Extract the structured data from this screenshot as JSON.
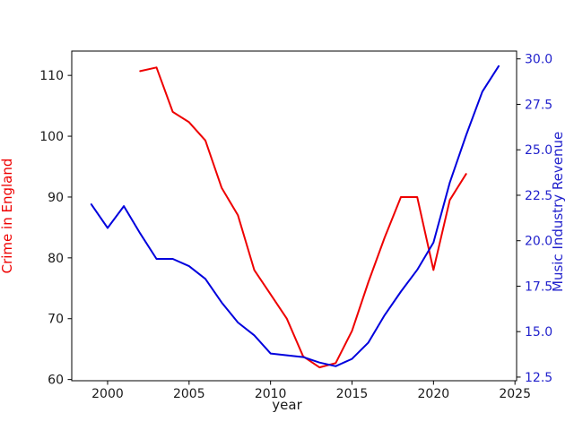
{
  "figure": {
    "background": "#ffffff",
    "spine_color": "#000000",
    "tick_label_color": "#1a1a1a"
  },
  "chart_data": {
    "type": "line",
    "title": "",
    "xlabel": "year",
    "grid": false,
    "legend": "none",
    "xlim": [
      1997.8,
      2025.1
    ],
    "x_ticks": [
      2000,
      2005,
      2010,
      2015,
      2020,
      2025
    ],
    "x_tick_labels": [
      "2000",
      "2005",
      "2010",
      "2015",
      "2020",
      "2025"
    ],
    "left_axis": {
      "label": "Crime in England",
      "label_color": "#ee0000",
      "tick_label_color": "#1a1a1a",
      "lim": [
        59.8,
        114.0
      ],
      "ticks": [
        60,
        70,
        80,
        90,
        100,
        110
      ],
      "tick_labels": [
        "60",
        "70",
        "80",
        "90",
        "100",
        "110"
      ]
    },
    "right_axis": {
      "label": "Music Industry Revenue",
      "label_color": "#2222cc",
      "tick_label_color": "#2222cc",
      "lim": [
        12.3,
        30.43
      ],
      "ticks": [
        12.5,
        15.0,
        17.5,
        20.0,
        22.5,
        25.0,
        27.5,
        30.0
      ],
      "tick_labels": [
        "12.5",
        "15.0",
        "17.5",
        "20.0",
        "22.5",
        "25.0",
        "27.5",
        "30.0"
      ]
    },
    "series": [
      {
        "name": "Crime in England",
        "slug": "crime-in-england-line",
        "axis": "left",
        "color": "#ee0000",
        "x": [
          2002,
          2003,
          2004,
          2005,
          2006,
          2007,
          2008,
          2009,
          2010,
          2011,
          2012,
          2013,
          2014,
          2015,
          2016,
          2017,
          2018,
          2019,
          2020,
          2021,
          2022
        ],
        "values": [
          110.7,
          111.3,
          104.0,
          102.3,
          99.3,
          91.5,
          87.0,
          78.0,
          74.0,
          70.0,
          63.8,
          62.0,
          62.7,
          68.0,
          76.0,
          83.3,
          90.0,
          90.0,
          78.0,
          89.5,
          93.8
        ]
      },
      {
        "name": "Music Industry Revenue",
        "slug": "music-industry-revenue-line",
        "axis": "right",
        "color": "#0000dd",
        "x": [
          1999,
          2000,
          2001,
          2002,
          2003,
          2004,
          2005,
          2006,
          2007,
          2008,
          2009,
          2010,
          2011,
          2012,
          2013,
          2014,
          2015,
          2016,
          2017,
          2018,
          2019,
          2020,
          2021,
          2022,
          2023,
          2024
        ],
        "values": [
          22.0,
          20.7,
          21.9,
          20.4,
          19.0,
          19.0,
          18.6,
          17.9,
          16.6,
          15.5,
          14.8,
          13.8,
          13.7,
          13.6,
          13.3,
          13.1,
          13.5,
          14.4,
          15.9,
          17.2,
          18.4,
          19.9,
          23.2,
          25.8,
          28.2,
          29.6
        ]
      }
    ]
  }
}
